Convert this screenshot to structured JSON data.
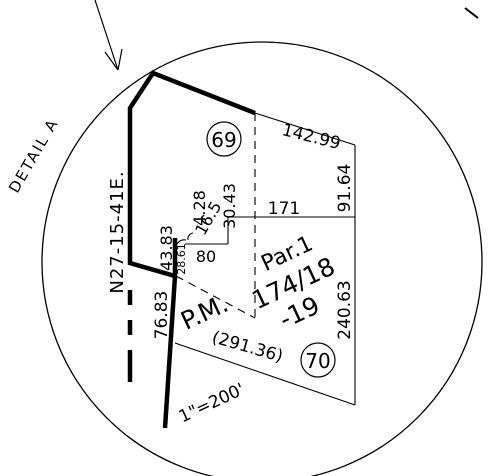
{
  "detail_label": "DETAIL A",
  "bearing": "N27-15-41E.",
  "scale": "1\"=200'",
  "parcels": {
    "p69": "69",
    "p70": "70"
  },
  "dimensions": {
    "d142_99": "142.99",
    "d91_64": "91.64",
    "d171": "171",
    "d240_63": "240.63",
    "d291_36": "(291.36)",
    "d76_83": "76.83",
    "d43_83": "43.83",
    "d28_61": "28.61",
    "d4_28": "4.28",
    "d16_5": "16.5",
    "d30_43": "30.43",
    "d80": "80"
  },
  "parcel_map": {
    "line1": "Par.1",
    "line2": "174/18",
    "line3": "-19",
    "pm": "P.M."
  },
  "colors": {
    "ink": "#000000",
    "background": "#ffffff"
  }
}
